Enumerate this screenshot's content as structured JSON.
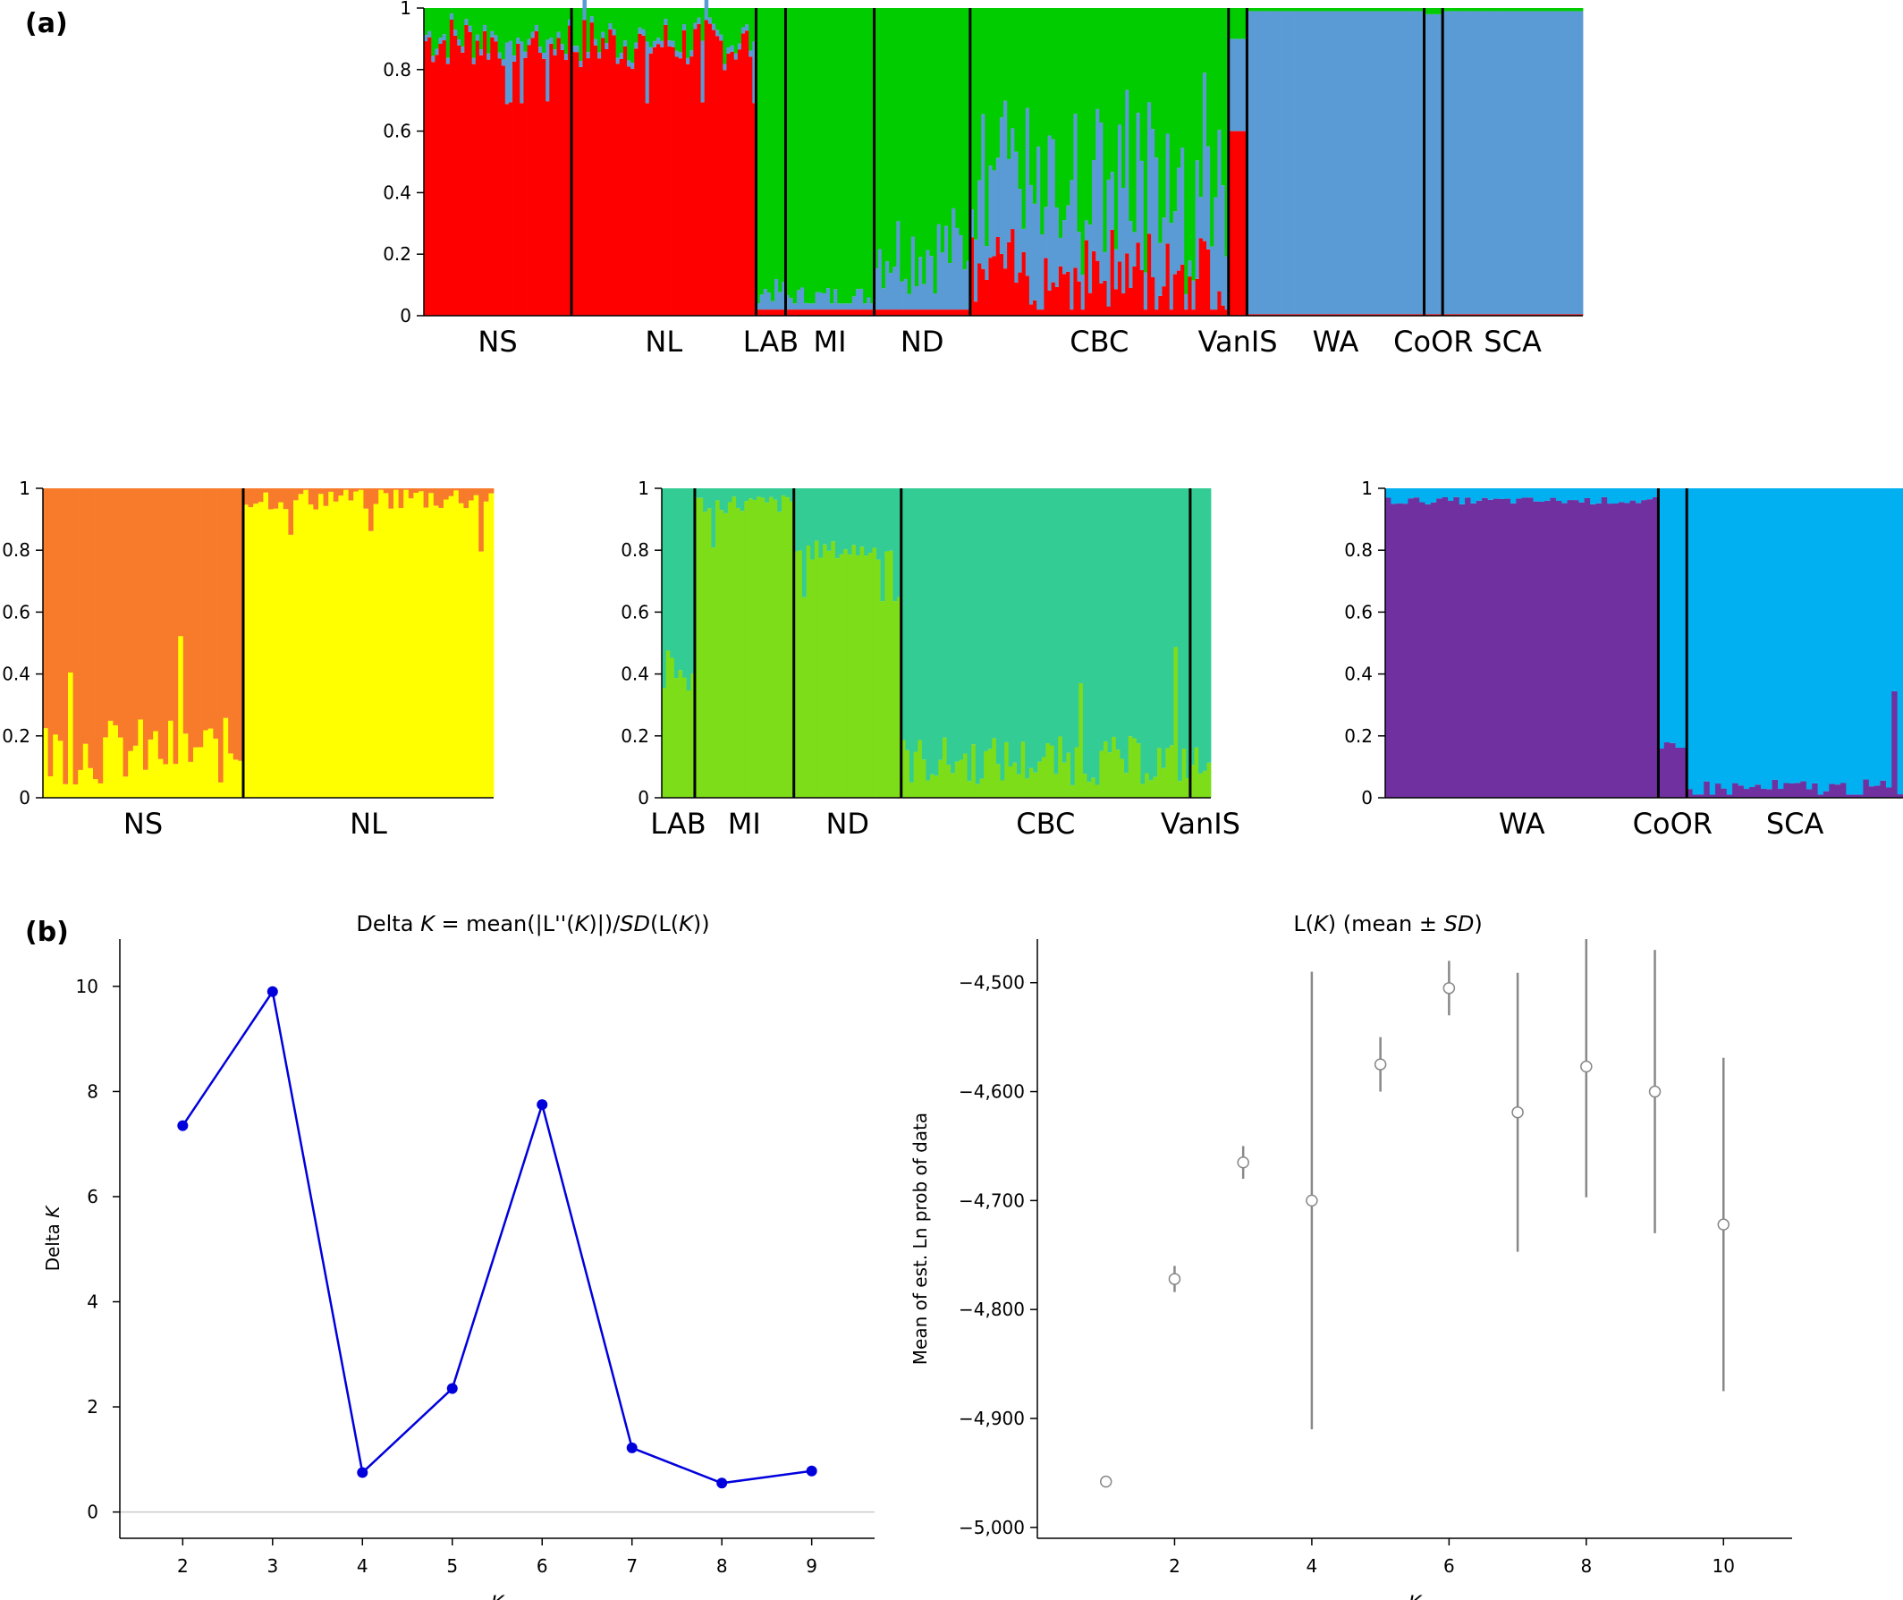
{
  "panel_labels": {
    "a": "(a)",
    "b": "(b)"
  },
  "colors": {
    "red": "#ff0000",
    "green": "#00cc00",
    "steel_blue": "#5b9bd5",
    "orange": "#f77b2a",
    "yellow": "#ffff00",
    "teal": "#33cc94",
    "lime": "#7ddd18",
    "purple": "#7030a0",
    "sky": "#00b0f0",
    "deltak_line": "#0000dd",
    "lk_marker": "#888888"
  },
  "chart_data": [
    {
      "type": "stacked_bar",
      "id": "structure_k3",
      "ylim": [
        0,
        1
      ],
      "yticks": [
        "0",
        "0.2",
        "0.4",
        "0.6",
        "0.8",
        "1"
      ],
      "series": [
        {
          "color": "#ff0000",
          "role": "bottom"
        },
        {
          "color": "#5b9bd5",
          "role": "middle"
        },
        {
          "color": "#00cc00",
          "role": "top"
        }
      ],
      "populations": [
        {
          "label": "NS",
          "n": 40,
          "red": 0.93,
          "blue": 0.04
        },
        {
          "label": "NL",
          "n": 50,
          "red": 0.92,
          "blue": 0.03
        },
        {
          "label": "LAB",
          "n": 8,
          "red": 0.02,
          "blue": 0.06
        },
        {
          "label": "MI",
          "n": 24,
          "red": 0.02,
          "blue": 0.04
        },
        {
          "label": "ND",
          "n": 26,
          "red": 0.02,
          "blue": 0.2
        },
        {
          "label": "CBC",
          "n": 70,
          "red": 0.14,
          "blue": 0.3
        },
        {
          "label": "VanIS",
          "n": 5,
          "red": 0.6,
          "blue": 0.3
        },
        {
          "label": "WA",
          "n": 48,
          "red": 0.005,
          "blue": 0.985
        },
        {
          "label": "CoOR",
          "n": 5,
          "red": 0.005,
          "blue": 0.975
        },
        {
          "label": "SCA",
          "n": 38,
          "red": 0.005,
          "blue": 0.985
        }
      ]
    },
    {
      "type": "stacked_bar",
      "id": "structure_east",
      "ylim": [
        0,
        1
      ],
      "yticks": [
        "0",
        "0.2",
        "0.4",
        "0.6",
        "0.8",
        "1"
      ],
      "series": [
        {
          "color": "#ffff00",
          "role": "bottom"
        },
        {
          "color": "#f77b2a",
          "role": "top"
        }
      ],
      "populations": [
        {
          "label": "NS",
          "n": 40,
          "bottom": 0.15
        },
        {
          "label": "NL",
          "n": 50,
          "bottom": 0.97
        }
      ]
    },
    {
      "type": "stacked_bar",
      "id": "structure_central",
      "ylim": [
        0,
        1
      ],
      "yticks": [
        "0",
        "0.2",
        "0.4",
        "0.6",
        "0.8",
        "1"
      ],
      "series": [
        {
          "color": "#7ddd18",
          "role": "bottom"
        },
        {
          "color": "#33cc94",
          "role": "top"
        }
      ],
      "populations": [
        {
          "label": "LAB",
          "n": 8,
          "bottom": 0.4
        },
        {
          "label": "MI",
          "n": 24,
          "bottom": 0.95
        },
        {
          "label": "ND",
          "n": 26,
          "bottom": 0.8
        },
        {
          "label": "CBC",
          "n": 70,
          "bottom": 0.12
        },
        {
          "label": "VanIS",
          "n": 5,
          "bottom": 0.1
        }
      ]
    },
    {
      "type": "stacked_bar",
      "id": "structure_west",
      "ylim": [
        0,
        1
      ],
      "yticks": [
        "0",
        "0.2",
        "0.4",
        "0.6",
        "0.8",
        "1"
      ],
      "series": [
        {
          "color": "#7030a0",
          "role": "bottom"
        },
        {
          "color": "#00b0f0",
          "role": "top"
        }
      ],
      "populations": [
        {
          "label": "WA",
          "n": 48,
          "bottom": 0.96
        },
        {
          "label": "CoOR",
          "n": 5,
          "bottom": 0.15
        },
        {
          "label": "SCA",
          "n": 38,
          "bottom": 0.03
        }
      ]
    },
    {
      "type": "line",
      "id": "delta_k",
      "title_parts": [
        "Delta ",
        "K",
        " = mean(|L''(",
        "K",
        ")|)/",
        "SD",
        "(L(",
        "K",
        "))"
      ],
      "xlabel": "K",
      "ylabel_parts": [
        "Delta ",
        "K"
      ],
      "x": [
        2,
        3,
        4,
        5,
        6,
        7,
        8,
        9
      ],
      "y": [
        7.35,
        9.9,
        0.75,
        2.35,
        7.75,
        1.22,
        0.55,
        0.78
      ],
      "xlim": [
        1.3,
        9.7
      ],
      "ylim": [
        -0.5,
        10.9
      ],
      "xticks": [
        2,
        3,
        4,
        5,
        6,
        7,
        8,
        9
      ],
      "yticks": [
        0,
        2,
        4,
        6,
        8,
        10
      ]
    },
    {
      "type": "scatter",
      "id": "lk_mean_sd",
      "title_parts": [
        "L(",
        "K",
        ") (mean ",
        "±",
        " ",
        "SD",
        ")"
      ],
      "xlabel": "K",
      "ylabel": "Mean of est. Ln prob of data",
      "x": [
        1,
        2,
        3,
        4,
        5,
        6,
        7,
        8,
        9,
        10
      ],
      "y": [
        -4958,
        -4772,
        -4665,
        -4700,
        -4575,
        -4505,
        -4619,
        -4577,
        -4600,
        -4722
      ],
      "sd": [
        0,
        12,
        15,
        210,
        25,
        25,
        128,
        120,
        130,
        153
      ],
      "xlim": [
        0,
        11
      ],
      "ylim": [
        -5010,
        -4460
      ],
      "xticks": [
        2,
        4,
        6,
        8,
        10
      ],
      "yticks": [
        -5000,
        -4900,
        -4800,
        -4700,
        -4600,
        -4500
      ],
      "ytick_labels": [
        "−5,000",
        "−4,900",
        "−4,800",
        "−4,700",
        "−4,600",
        "−4,500"
      ]
    }
  ]
}
